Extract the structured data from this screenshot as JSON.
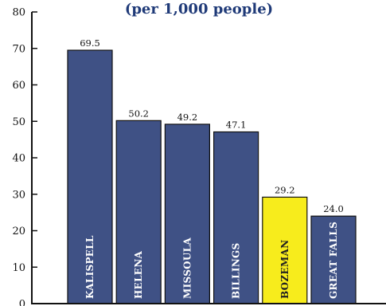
{
  "chart_data": {
    "type": "bar",
    "title": "(per 1,000 people)",
    "categories": [
      "KALISPELL",
      "HELENA",
      "MISSOULA",
      "BILLINGS",
      "BOZEMAN",
      "GREAT FALLS"
    ],
    "values": [
      69.5,
      50.2,
      49.2,
      47.1,
      29.2,
      24.0
    ],
    "value_labels": [
      "69.5",
      "50.2",
      "49.2",
      "47.1",
      "29.2",
      "24.0"
    ],
    "highlight_category": "BOZEMAN",
    "ylim": [
      0,
      80
    ],
    "yticks": [
      0,
      10,
      20,
      30,
      40,
      50,
      60,
      70,
      80
    ],
    "grid": false,
    "colors": {
      "bar": "#3f5185",
      "highlight": "#f7ec1c",
      "label_on_bar": "#ffffff",
      "label_on_highlight": "#222222"
    }
  }
}
